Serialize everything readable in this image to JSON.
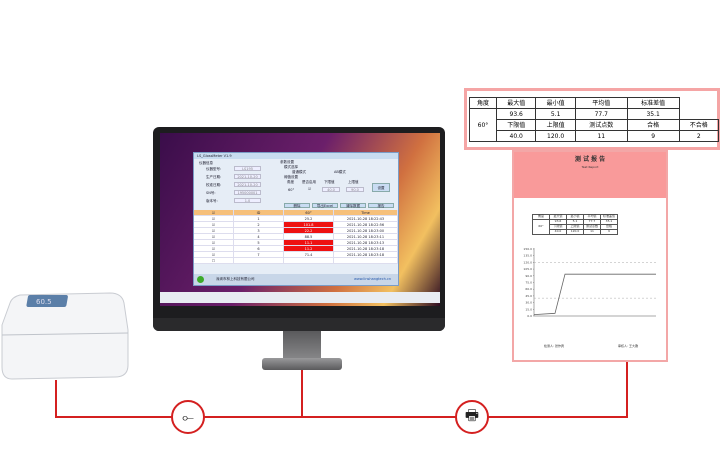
{
  "app": {
    "title": "LS_GlossMeter V1.9",
    "device_info": {
      "heading": "仪器信息",
      "model_label": "仪器型号:",
      "model": "LS195",
      "prod_date_label": "生产日期:",
      "prod_date": "2021-10-20",
      "cal_date_label": "校准日期:",
      "cal_date": "2021-10-20",
      "sn_label": "SN号:",
      "sn": "195000001",
      "version_label": "版本号:",
      "version": "1.0"
    },
    "params": {
      "heading": "参数设置",
      "mode_label": "模式选择",
      "mode_basic": "普通模式",
      "mode_ab": "AB模式",
      "threshold_label": "阈值设置",
      "angle_col": "角度",
      "enable_col": "是否启用",
      "lower_col": "下限值",
      "upper_col": "上限值",
      "angle": "60°",
      "lower": "40.0",
      "upper": "90.0",
      "set_button": "设置"
    },
    "buttons": [
      "删除",
      "导出Excel",
      "清除数据",
      "报告"
    ],
    "table": {
      "headers": [
        "",
        "ID",
        "60°",
        "Time"
      ],
      "rows": [
        {
          "id": "1",
          "value": "25.2",
          "time": "2021-10-28 18:22:43",
          "fail": false
        },
        {
          "id": "2",
          "value": "101.8",
          "time": "2021-10-28 18:22:56",
          "fail": true
        },
        {
          "id": "3",
          "value": "22.2",
          "time": "2021-10-28 18:23:00",
          "fail": true
        },
        {
          "id": "4",
          "value": "88.5",
          "time": "2021-10-28 18:23:11",
          "fail": false
        },
        {
          "id": "5",
          "value": "11.1",
          "time": "2021-10-28 18:23:13",
          "fail": true
        },
        {
          "id": "6",
          "value": "11.2",
          "time": "2021-10-28 18:23:18",
          "fail": true
        },
        {
          "id": "7",
          "value": "71.4",
          "time": "2021-10-28 18:23:18",
          "fail": false
        }
      ]
    },
    "footer_left": "深圳市林上科技有限公司",
    "footer_right": "www.linshangtech.cn"
  },
  "report": {
    "title": "测 试 报 告",
    "subtitle": "Test Report",
    "signer_left": "检测人: 张作宾",
    "signer_right": "审核人: 王大锤",
    "chart_yticks": [
      "150.0",
      "135.0",
      "120.0",
      "105.0",
      "90.0",
      "75.0",
      "60.0",
      "45.0",
      "30.0",
      "15.0",
      "0.0"
    ]
  },
  "zoom_table": {
    "headers": [
      "角度",
      "最大值",
      "最小值",
      "平均值",
      "标准差值"
    ],
    "angle": "60°",
    "values": [
      "93.6",
      "5.1",
      "77.7",
      "35.1"
    ],
    "headers2": [
      "下限值",
      "上限值",
      "测试点数",
      "合格",
      "不合格"
    ],
    "values2": [
      "40.0",
      "120.0",
      "11",
      "9",
      "2"
    ]
  },
  "device": {
    "display": "60.5"
  },
  "icons": {
    "cable": "usb-cable-icon",
    "printer": "printer-icon"
  },
  "colors": {
    "accent": "#d42020",
    "highlight": "#f5a5a5"
  }
}
